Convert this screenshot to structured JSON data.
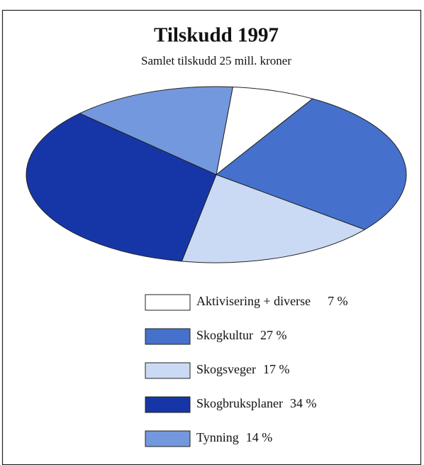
{
  "chart_data": {
    "type": "pie",
    "title": "Tilskudd 1997",
    "subtitle": "Samlet tilskudd 25 mill. kroner",
    "categories": [
      "Aktivisering + diverse",
      "Skogkultur",
      "Skogsveger",
      "Skogbruksplaner",
      "Tynning"
    ],
    "values": [
      7,
      27,
      17,
      34,
      14
    ],
    "value_labels": [
      "7 %",
      "27 %",
      "17 %",
      "34 %",
      "14 %"
    ],
    "colors": [
      "#ffffff",
      "#4571cc",
      "#cbdaf4",
      "#1636a8",
      "#7498de"
    ]
  }
}
